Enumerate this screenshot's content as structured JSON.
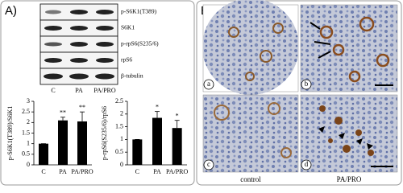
{
  "panel_a": {
    "label": "A)",
    "blot_labels": [
      "p-S6K1(T389)",
      "S6K1",
      "p-rpS6(S235/6)",
      "rpS6",
      "β-tubulin"
    ],
    "lanes": [
      "C",
      "PA",
      "PA/PRO"
    ]
  },
  "chart_data": [
    {
      "type": "bar",
      "y_label": "p-S6K1(T389)/S6K1",
      "categories": [
        "C",
        "PA",
        "PA/PRO"
      ],
      "values": [
        1,
        2.1,
        2.05
      ],
      "errors": [
        0,
        0.15,
        0.45
      ],
      "significance": [
        null,
        "**",
        "**"
      ],
      "color": "#000000",
      "ylim": [
        0,
        3
      ],
      "yticks": [
        0,
        0.5,
        1,
        1.5,
        2,
        2.5,
        3
      ]
    },
    {
      "type": "bar",
      "y_label": "p-rpS6(S235/6)/rpS6",
      "categories": [
        "C",
        "PA",
        "PA/PRO"
      ],
      "values": [
        1,
        1.85,
        1.45
      ],
      "errors": [
        0,
        0.25,
        0.3
      ],
      "significance": [
        null,
        "*",
        "*"
      ],
      "color": "#000000",
      "ylim": [
        0,
        2.5
      ],
      "yticks": [
        0,
        0.5,
        1,
        1.5,
        2,
        2.5
      ]
    }
  ],
  "panel_b": {
    "label": "B)",
    "images": [
      "a",
      "b",
      "c",
      "d"
    ],
    "captions": [
      "control",
      "PA/PRO"
    ]
  }
}
